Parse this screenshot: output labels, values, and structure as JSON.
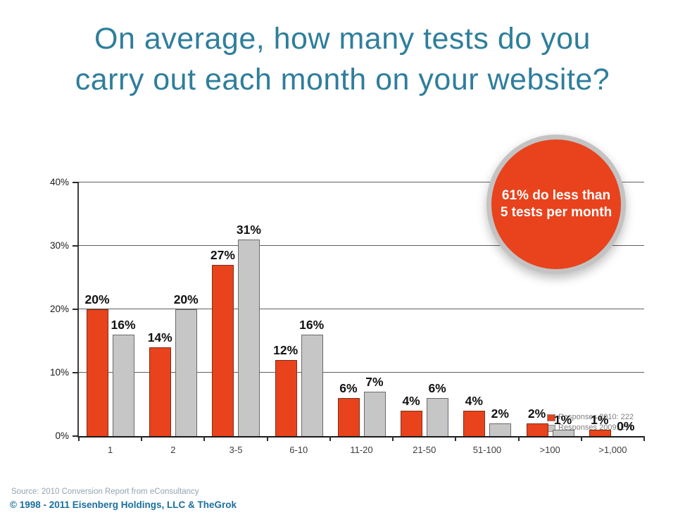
{
  "slide": {
    "title_line1": "On average, how many tests do you",
    "title_line2": "carry out each month on your website?",
    "title_color": "#2E7E9C"
  },
  "badge": {
    "line1": "61% do less than",
    "line2": "5 tests per month",
    "fill": "#E8431D",
    "ring": "#C3C3C3",
    "text_color": "#FFFFFF"
  },
  "chart_data": {
    "type": "bar",
    "title": "On average, how many tests do you carry out each month on your website?",
    "categories": [
      "1",
      "2",
      "3-5",
      "6-10",
      "11-20",
      "21-50",
      "51-100",
      ">100",
      ">1,000"
    ],
    "series": [
      {
        "name": "Responses 2010: 222",
        "color": "#E8431C",
        "values": [
          20,
          14,
          27,
          12,
          6,
          4,
          4,
          2,
          1
        ]
      },
      {
        "name": "Responses 2009: 271",
        "color": "#C6C6C6",
        "values": [
          16,
          20,
          31,
          16,
          7,
          6,
          2,
          1,
          0
        ]
      }
    ],
    "y_ticks": [
      "0%",
      "10%",
      "20%",
      "30%",
      "40%"
    ],
    "ylim": [
      0,
      40
    ],
    "grid": true,
    "data_labels": true,
    "data_label_suffix": "%",
    "legend_position": "inside-bottom-right",
    "annotation": "61% do less than 5 tests per month"
  },
  "footer": {
    "source": "Source: 2010 Conversion Report from eConsultancy",
    "copyright": "© 1998 - 2011 Eisenberg Holdings, LLC & TheGrok"
  }
}
